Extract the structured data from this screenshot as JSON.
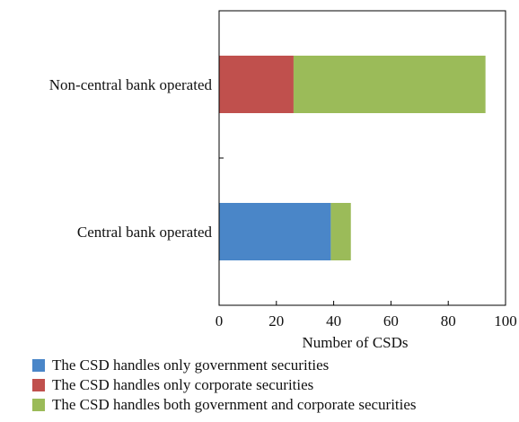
{
  "chart_data": {
    "type": "bar",
    "orientation": "horizontal",
    "stacked": true,
    "categories": [
      "Non-central bank operated",
      "Central bank operated"
    ],
    "series": [
      {
        "name": "The CSD handles only government securities",
        "color": "#4a86c8",
        "values": [
          0,
          39
        ]
      },
      {
        "name": "The CSD handles only corporate securities",
        "color": "#c0504d",
        "values": [
          26,
          0
        ]
      },
      {
        "name": "The CSD handles both government and corporate securities",
        "color": "#9bbb59",
        "values": [
          67,
          7
        ]
      }
    ],
    "xlabel": "Number of CSDs",
    "ylabel": "",
    "xlim": [
      0,
      100
    ],
    "xticks": [
      0,
      20,
      40,
      60,
      80,
      100
    ],
    "grid": false,
    "legend_position": "bottom"
  }
}
